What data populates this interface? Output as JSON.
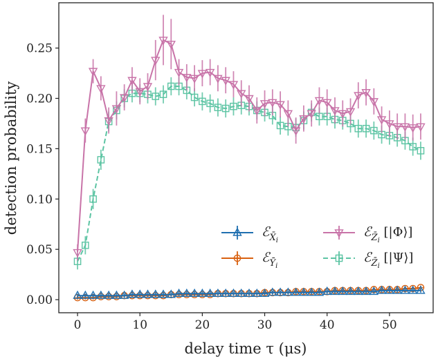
{
  "chart_data": {
    "type": "line",
    "xlabel": "delay time τ (μs)",
    "ylabel": "detection probability",
    "xlim": [
      -3,
      57
    ],
    "ylim": [
      -0.013,
      0.295
    ],
    "xticks": [
      0,
      10,
      20,
      30,
      40,
      50
    ],
    "yticks": [
      0.0,
      0.05,
      0.1,
      0.15,
      0.2,
      0.25
    ],
    "xtick_labels": [
      "0",
      "10",
      "20",
      "30",
      "40",
      "50"
    ],
    "ytick_labels": [
      "0.00",
      "0.05",
      "0.10",
      "0.15",
      "0.20",
      "0.25"
    ],
    "grid": false,
    "legend_position": "lower-right",
    "x": [
      0,
      1.25,
      2.5,
      3.75,
      5,
      6.25,
      7.5,
      8.75,
      10,
      11.25,
      12.5,
      13.75,
      15,
      16.25,
      17.5,
      18.75,
      20,
      21.25,
      22.5,
      23.75,
      25,
      26.25,
      27.5,
      28.75,
      30,
      31.25,
      32.5,
      33.75,
      35,
      36.25,
      37.5,
      38.75,
      40,
      41.25,
      42.5,
      43.75,
      45,
      46.25,
      47.5,
      48.75,
      50,
      51.25,
      52.5,
      53.75,
      55
    ],
    "series": [
      {
        "name": "ℰ_{X̄ᵢ}",
        "color": "#1f6fb0",
        "marker": "triangle-up",
        "linestyle": "solid",
        "values": [
          0.004,
          0.004,
          0.004,
          0.004,
          0.004,
          0.004,
          0.004,
          0.005,
          0.005,
          0.005,
          0.005,
          0.005,
          0.005,
          0.006,
          0.006,
          0.006,
          0.006,
          0.006,
          0.006,
          0.006,
          0.006,
          0.006,
          0.006,
          0.006,
          0.006,
          0.007,
          0.007,
          0.007,
          0.007,
          0.007,
          0.007,
          0.007,
          0.008,
          0.008,
          0.008,
          0.008,
          0.008,
          0.008,
          0.008,
          0.009,
          0.009,
          0.009,
          0.009,
          0.009,
          0.009
        ],
        "errors": [
          0.002,
          0.002,
          0.002,
          0.002,
          0.002,
          0.002,
          0.002,
          0.002,
          0.002,
          0.002,
          0.002,
          0.002,
          0.002,
          0.002,
          0.002,
          0.002,
          0.002,
          0.002,
          0.002,
          0.002,
          0.002,
          0.002,
          0.002,
          0.002,
          0.002,
          0.002,
          0.002,
          0.002,
          0.002,
          0.002,
          0.002,
          0.002,
          0.002,
          0.002,
          0.002,
          0.002,
          0.002,
          0.002,
          0.002,
          0.002,
          0.002,
          0.002,
          0.002,
          0.002,
          0.002
        ]
      },
      {
        "name": "ℰ_{Ȳᵢ}",
        "color": "#d9600f",
        "marker": "circle-plus",
        "linestyle": "solid",
        "values": [
          0.002,
          0.002,
          0.002,
          0.003,
          0.003,
          0.003,
          0.004,
          0.004,
          0.004,
          0.004,
          0.004,
          0.004,
          0.005,
          0.005,
          0.005,
          0.005,
          0.005,
          0.005,
          0.006,
          0.006,
          0.006,
          0.006,
          0.006,
          0.006,
          0.007,
          0.007,
          0.007,
          0.007,
          0.008,
          0.008,
          0.008,
          0.008,
          0.008,
          0.009,
          0.009,
          0.009,
          0.009,
          0.009,
          0.01,
          0.01,
          0.01,
          0.01,
          0.011,
          0.011,
          0.012
        ],
        "errors": [
          0.002,
          0.002,
          0.002,
          0.002,
          0.002,
          0.002,
          0.002,
          0.002,
          0.002,
          0.002,
          0.002,
          0.002,
          0.002,
          0.002,
          0.002,
          0.002,
          0.002,
          0.002,
          0.002,
          0.002,
          0.002,
          0.002,
          0.002,
          0.002,
          0.002,
          0.002,
          0.002,
          0.002,
          0.002,
          0.002,
          0.002,
          0.002,
          0.002,
          0.002,
          0.002,
          0.002,
          0.002,
          0.002,
          0.002,
          0.002,
          0.002,
          0.002,
          0.002,
          0.002,
          0.002
        ]
      },
      {
        "name": "ℰ_{Z̄ᵢ} [|Φ⟩]",
        "color": "#c873a8",
        "marker": "triangle-down",
        "linestyle": "solid",
        "values": [
          0.047,
          0.168,
          0.227,
          0.21,
          0.178,
          0.19,
          0.201,
          0.218,
          0.207,
          0.212,
          0.238,
          0.258,
          0.254,
          0.226,
          0.221,
          0.22,
          0.225,
          0.226,
          0.22,
          0.218,
          0.214,
          0.205,
          0.2,
          0.188,
          0.195,
          0.196,
          0.194,
          0.185,
          0.168,
          0.18,
          0.185,
          0.198,
          0.196,
          0.188,
          0.185,
          0.187,
          0.203,
          0.206,
          0.197,
          0.179,
          0.175,
          0.172,
          0.172,
          0.171,
          0.172
        ],
        "errors": [
          0.008,
          0.012,
          0.012,
          0.012,
          0.013,
          0.017,
          0.013,
          0.013,
          0.013,
          0.013,
          0.02,
          0.025,
          0.025,
          0.013,
          0.013,
          0.013,
          0.013,
          0.013,
          0.013,
          0.013,
          0.013,
          0.013,
          0.013,
          0.013,
          0.013,
          0.013,
          0.013,
          0.013,
          0.013,
          0.013,
          0.013,
          0.013,
          0.013,
          0.013,
          0.013,
          0.013,
          0.013,
          0.013,
          0.013,
          0.013,
          0.013,
          0.013,
          0.013,
          0.013,
          0.013
        ]
      },
      {
        "name": "ℰ_{Z̄ᵢ} [|Ψ⟩]",
        "color": "#5cc4a3",
        "marker": "square-plus",
        "linestyle": "dashed",
        "values": [
          0.038,
          0.054,
          0.1,
          0.139,
          0.177,
          0.188,
          0.2,
          0.205,
          0.205,
          0.204,
          0.202,
          0.204,
          0.212,
          0.212,
          0.208,
          0.201,
          0.197,
          0.195,
          0.191,
          0.19,
          0.192,
          0.193,
          0.192,
          0.188,
          0.186,
          0.183,
          0.173,
          0.172,
          0.171,
          0.178,
          0.186,
          0.182,
          0.182,
          0.179,
          0.178,
          0.175,
          0.17,
          0.17,
          0.168,
          0.164,
          0.163,
          0.161,
          0.158,
          0.152,
          0.148
        ],
        "errors": [
          0.008,
          0.009,
          0.01,
          0.01,
          0.01,
          0.009,
          0.009,
          0.009,
          0.009,
          0.009,
          0.009,
          0.009,
          0.009,
          0.009,
          0.009,
          0.009,
          0.009,
          0.009,
          0.009,
          0.009,
          0.009,
          0.009,
          0.009,
          0.009,
          0.009,
          0.009,
          0.009,
          0.009,
          0.009,
          0.009,
          0.009,
          0.009,
          0.009,
          0.009,
          0.009,
          0.009,
          0.009,
          0.009,
          0.009,
          0.009,
          0.009,
          0.009,
          0.009,
          0.009,
          0.009
        ]
      }
    ]
  }
}
